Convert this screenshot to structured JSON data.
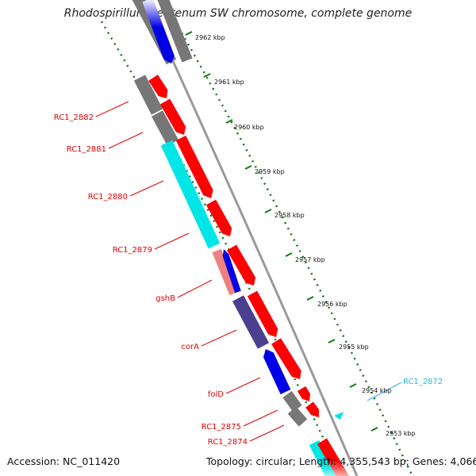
{
  "title": "Rhodospirillum centenum SW chromosome, complete genome",
  "footer": {
    "accession": "Accession: NC_011420",
    "topology": "Topology: circular; Length: 4,355,543 bp; Genes: 4,066"
  },
  "ticks": [
    "2962 kbp",
    "2961 kbp",
    "2960 kbp",
    "2959 kbp",
    "2958 kbp",
    "2957 kbp",
    "2956 kbp",
    "2955 kbp",
    "2954 kbp",
    "2953 kbp"
  ],
  "gene_labels": [
    {
      "text": "RC1_2882",
      "color": "#e00000"
    },
    {
      "text": "RC1_2881",
      "color": "#e00000"
    },
    {
      "text": "RC1_2880",
      "color": "#e00000"
    },
    {
      "text": "RC1_2879",
      "color": "#e00000"
    },
    {
      "text": "gshB",
      "color": "#e00000"
    },
    {
      "text": "corA",
      "color": "#e00000"
    },
    {
      "text": "folD",
      "color": "#e00000"
    },
    {
      "text": "RC1_2875",
      "color": "#e00000"
    },
    {
      "text": "RC1_2874",
      "color": "#e00000"
    },
    {
      "text": "RC1_2872",
      "color": "#29b6e6"
    }
  ],
  "colors": {
    "cds_forward": "#ff0000",
    "cds_reverse": "#0000e6",
    "gray_feature": "#777777",
    "cyan_feature": "#00e6e6",
    "purple_feature": "#4b3f8f",
    "pink_feature": "#f08080",
    "backbone": "#999999",
    "tick_color": "#117711"
  }
}
